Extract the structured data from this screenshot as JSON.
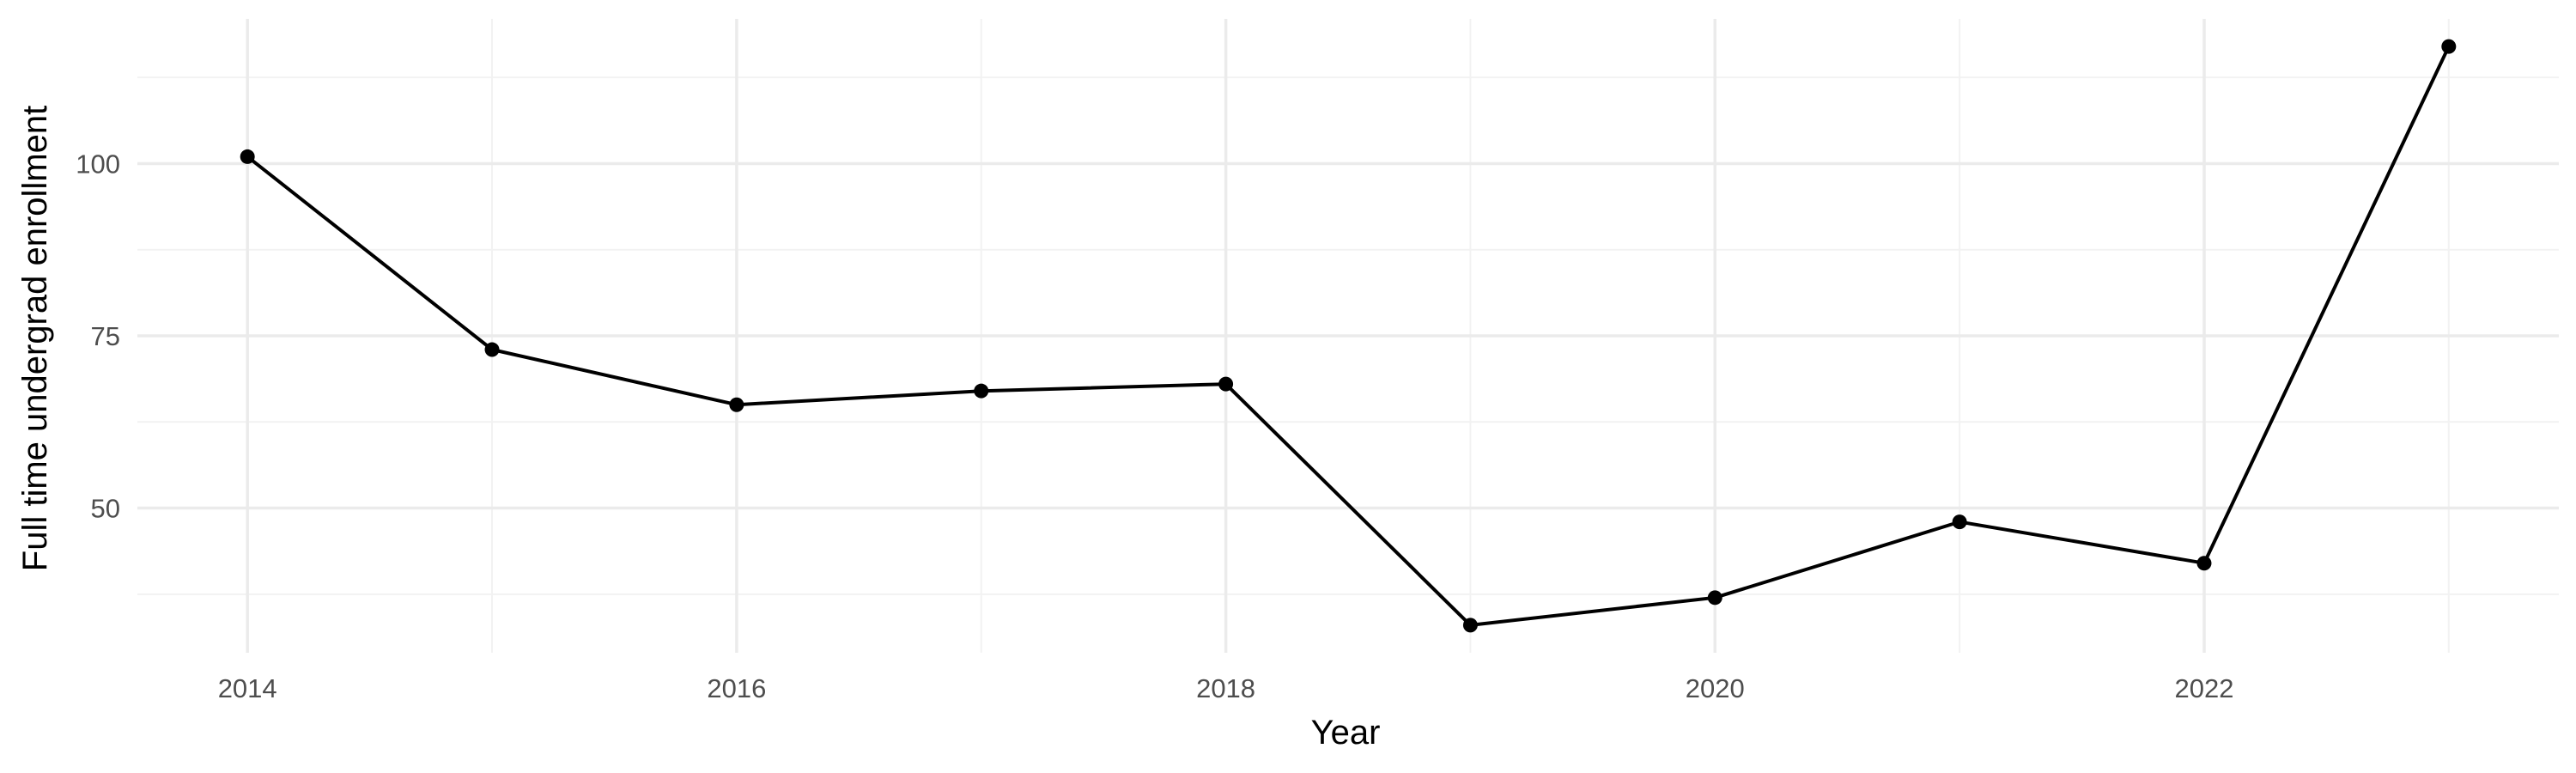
{
  "chart_data": {
    "type": "line",
    "title": "",
    "xlabel": "Year",
    "ylabel": "Full time undergrad enrollment",
    "x": [
      2014,
      2015,
      2016,
      2017,
      2018,
      2019,
      2020,
      2021,
      2022,
      2023
    ],
    "series": [
      {
        "values": [
          101,
          73,
          65,
          67,
          68,
          33,
          37,
          48,
          42,
          117
        ]
      }
    ],
    "x_ticks": [
      "2014",
      "2016",
      "2018",
      "2020",
      "2022"
    ],
    "y_ticks": [
      "50",
      "75",
      "100"
    ],
    "xlim": [
      2013.55,
      2023.45
    ],
    "ylim": [
      29,
      121
    ],
    "grid": true,
    "legend": "none",
    "colors": {
      "line": "#000000",
      "point": "#000000",
      "grid": "#ebebeb"
    }
  }
}
